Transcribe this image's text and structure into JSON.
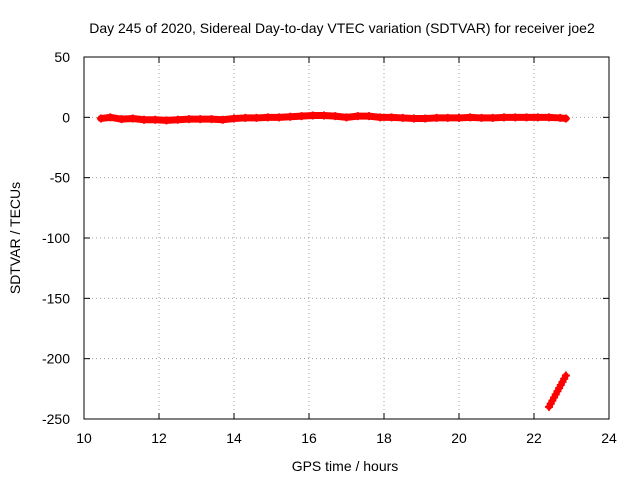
{
  "chart_data": {
    "type": "scatter",
    "title": "Day 245 of 2020, Sidereal Day-to-day VTEC variation (SDTVAR) for receiver joe2",
    "xlabel": "GPS time / hours",
    "ylabel": "SDTVAR / TECUs",
    "xlim": [
      10,
      24
    ],
    "ylim": [
      -250,
      50
    ],
    "xticks": [
      "10",
      "12",
      "14",
      "16",
      "18",
      "20",
      "22",
      "24"
    ],
    "yticks": [
      "50",
      "0",
      "-50",
      "-100",
      "-150",
      "-200",
      "-250"
    ],
    "grid": true,
    "series": [
      {
        "name": "SDTVAR",
        "color": "#ff0000",
        "marker": "plus",
        "points": [
          [
            10.45,
            -1
          ],
          [
            10.7,
            0
          ],
          [
            11.0,
            -1.5
          ],
          [
            11.3,
            -1
          ],
          [
            11.6,
            -2
          ],
          [
            11.9,
            -2
          ],
          [
            12.2,
            -2.5
          ],
          [
            12.5,
            -2
          ],
          [
            12.8,
            -1.5
          ],
          [
            13.1,
            -1.5
          ],
          [
            13.4,
            -1.5
          ],
          [
            13.7,
            -2
          ],
          [
            14.0,
            -1
          ],
          [
            14.3,
            -0.5
          ],
          [
            14.6,
            -0.5
          ],
          [
            14.9,
            0
          ],
          [
            15.2,
            0
          ],
          [
            15.5,
            0.5
          ],
          [
            15.8,
            1
          ],
          [
            16.1,
            1.5
          ],
          [
            16.4,
            1.5
          ],
          [
            16.7,
            1
          ],
          [
            17.0,
            0
          ],
          [
            17.3,
            1
          ],
          [
            17.6,
            1
          ],
          [
            17.9,
            0
          ],
          [
            18.2,
            0
          ],
          [
            18.5,
            -0.5
          ],
          [
            18.8,
            -1
          ],
          [
            19.1,
            -1
          ],
          [
            19.4,
            -0.5
          ],
          [
            19.7,
            -0.5
          ],
          [
            20.0,
            -0.5
          ],
          [
            20.3,
            0
          ],
          [
            20.6,
            -0.5
          ],
          [
            20.9,
            -0.5
          ],
          [
            21.2,
            0
          ],
          [
            21.5,
            0
          ],
          [
            21.8,
            0
          ],
          [
            22.1,
            0
          ],
          [
            22.4,
            0
          ],
          [
            22.7,
            -0.5
          ],
          [
            22.85,
            -1
          ]
        ],
        "segment": [
          [
            22.4,
            -240
          ],
          [
            22.85,
            -214
          ]
        ]
      }
    ]
  }
}
